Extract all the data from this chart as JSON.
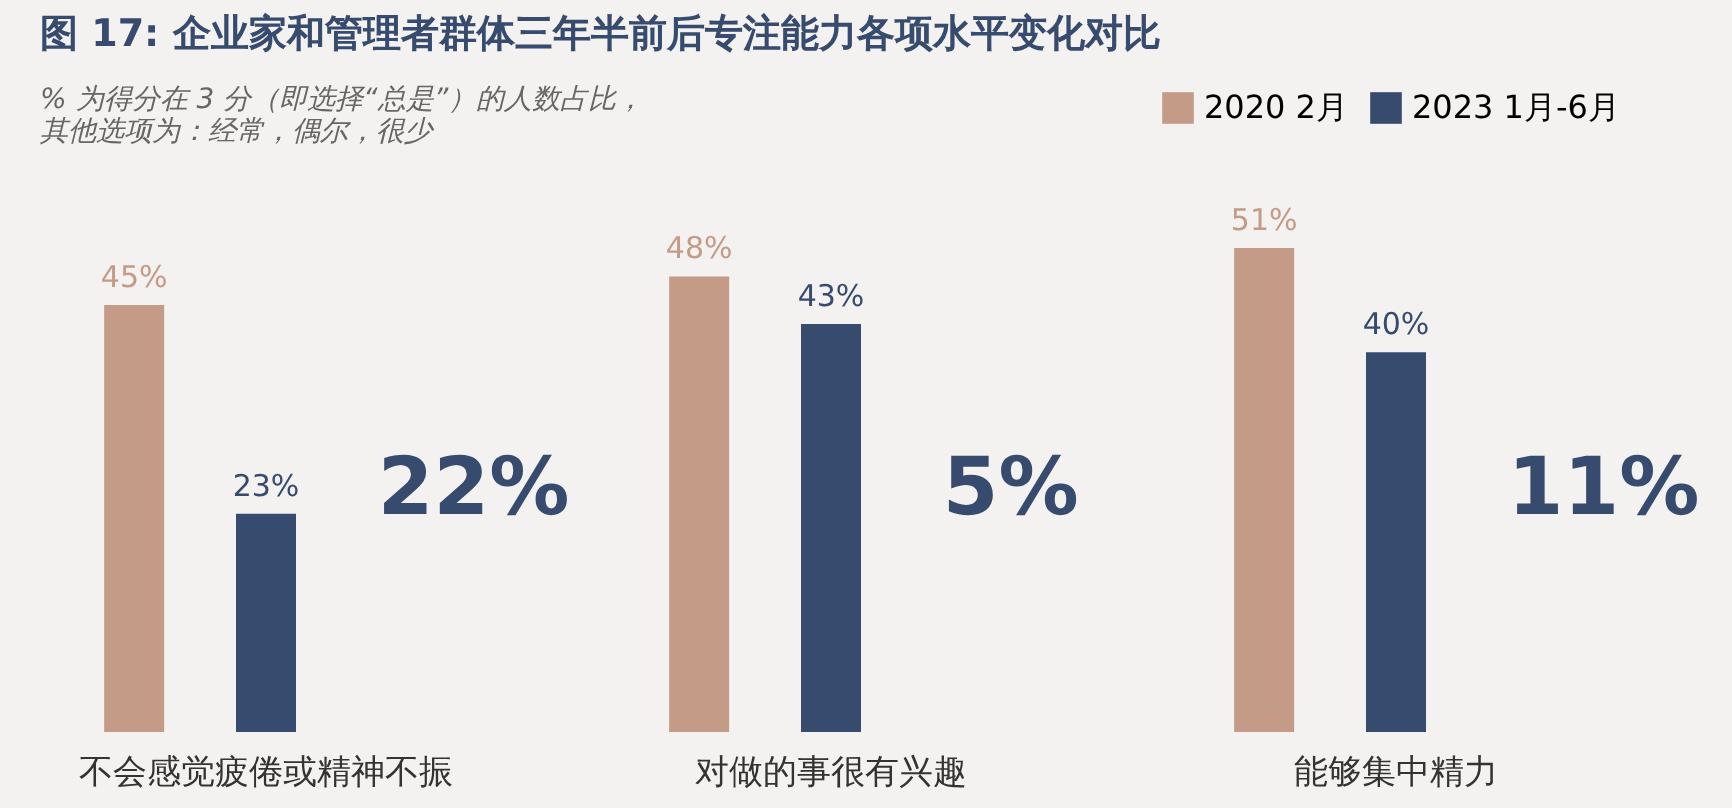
{
  "chart_data": {
    "type": "bar",
    "title": "图 17: 企业家和管理者群体三年半前后专注能力各项水平变化对比",
    "subtitle": [
      "% 为得分在 3 分（即选择“总是”）的人数占比，",
      "其他选项为：经常，偶尔，很少"
    ],
    "categories": [
      "不会感觉疲倦或精神不振",
      "对做的事很有兴趣",
      "能够集中精力"
    ],
    "series": [
      {
        "name": "2020 2月",
        "color": "#c49b86",
        "values": [
          45,
          48,
          51
        ],
        "value_labels": [
          "45%",
          "48%",
          "51%"
        ]
      },
      {
        "name": "2023 1月-6月",
        "color": "#364b6e",
        "values": [
          23,
          43,
          40
        ],
        "value_labels": [
          "23%",
          "43%",
          "40%"
        ]
      }
    ],
    "legend": "top right",
    "annotations": [
      "22%",
      "5%",
      "11%"
    ]
  }
}
